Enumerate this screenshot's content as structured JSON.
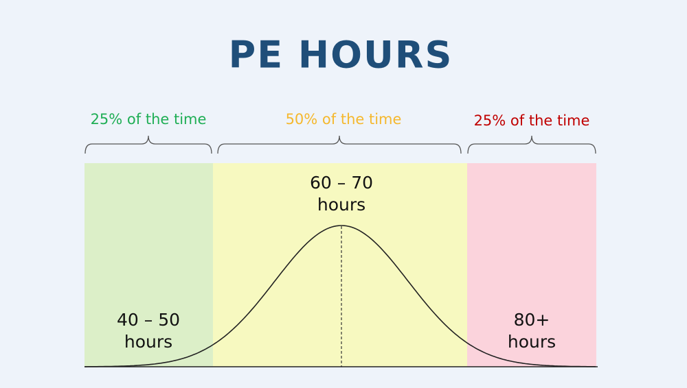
{
  "title": "PE HOURS",
  "regions": [
    {
      "share": "25% of the time",
      "hours": [
        "40 – 50",
        "hours"
      ]
    },
    {
      "share": "50% of the time",
      "hours": [
        "60 – 70",
        "hours"
      ]
    },
    {
      "share": "25% of the time",
      "hours": [
        "80+",
        "hours"
      ]
    }
  ]
}
